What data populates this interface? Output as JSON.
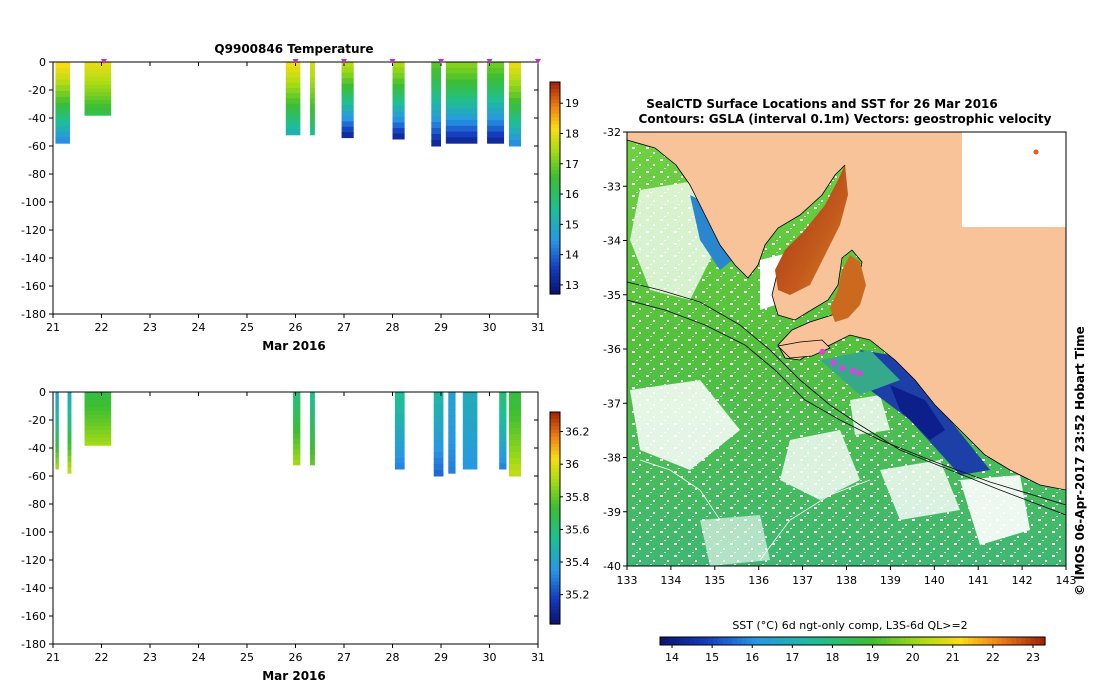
{
  "chart_data": [
    {
      "type": "heatmap",
      "title": "Q9900846  Temperature",
      "xlabel": "Mar 2016",
      "x_ticks": [
        "21",
        "22",
        "23",
        "24",
        "25",
        "26",
        "27",
        "28",
        "29",
        "30",
        "31"
      ],
      "y_ticks": [
        "0",
        "-20",
        "-40",
        "-60",
        "-80",
        "-100",
        "-120",
        "-140",
        "-160",
        "-180"
      ],
      "xlim": [
        21,
        31
      ],
      "ylim": [
        -180,
        0
      ],
      "colorbar": {
        "ticks": [
          "19",
          "18",
          "17",
          "16",
          "15",
          "14",
          "13"
        ],
        "tick_values": [
          19,
          18,
          17,
          16,
          15,
          14,
          13
        ],
        "range": [
          12.7,
          19.7
        ]
      },
      "profiles": [
        {
          "x0": 21.05,
          "x1": 21.35,
          "depth": 58,
          "surface": 18.2,
          "bottom": 14.2
        },
        {
          "x0": 21.65,
          "x1": 22.2,
          "depth": 38,
          "surface": 18.0,
          "bottom": 16.2
        },
        {
          "x0": 25.8,
          "x1": 26.1,
          "depth": 52,
          "surface": 18.1,
          "bottom": 15.0
        },
        {
          "x0": 26.3,
          "x1": 26.4,
          "depth": 52,
          "surface": 17.8,
          "bottom": 15.5
        },
        {
          "x0": 26.95,
          "x1": 27.2,
          "depth": 54,
          "surface": 17.6,
          "bottom": 13.0
        },
        {
          "x0": 28.0,
          "x1": 28.25,
          "depth": 55,
          "surface": 17.5,
          "bottom": 13.0
        },
        {
          "x0": 28.8,
          "x1": 29.0,
          "depth": 60,
          "surface": 16.8,
          "bottom": 13.0
        },
        {
          "x0": 29.1,
          "x1": 29.75,
          "depth": 58,
          "surface": 17.2,
          "bottom": 13.0
        },
        {
          "x0": 29.95,
          "x1": 30.3,
          "depth": 58,
          "surface": 17.0,
          "bottom": 13.0
        },
        {
          "x0": 30.4,
          "x1": 30.65,
          "depth": 60,
          "surface": 18.0,
          "bottom": 14.2
        }
      ],
      "markers": [
        22.05,
        26.0,
        27.0,
        28.0,
        29.0,
        30.0,
        31.0
      ]
    },
    {
      "type": "heatmap",
      "title": "",
      "xlabel": "Mar 2016",
      "x_ticks": [
        "21",
        "22",
        "23",
        "24",
        "25",
        "26",
        "27",
        "28",
        "29",
        "30",
        "31"
      ],
      "y_ticks": [
        "0",
        "-20",
        "-40",
        "-60",
        "-80",
        "-100",
        "-120",
        "-140",
        "-160",
        "-180"
      ],
      "xlim": [
        21,
        31
      ],
      "ylim": [
        -180,
        0
      ],
      "colorbar": {
        "ticks": [
          "36.2",
          "36",
          "35.8",
          "35.6",
          "35.4",
          "35.2"
        ],
        "tick_values": [
          36.2,
          36.0,
          35.8,
          35.6,
          35.4,
          35.2
        ],
        "range": [
          35.02,
          36.32
        ]
      },
      "profiles": [
        {
          "x0": 21.05,
          "x1": 21.12,
          "depth": 55,
          "surface": 35.4,
          "bottom": 35.9
        },
        {
          "x0": 21.3,
          "x1": 21.38,
          "depth": 58,
          "surface": 35.45,
          "bottom": 35.95
        },
        {
          "x0": 21.65,
          "x1": 22.2,
          "depth": 38,
          "surface": 35.7,
          "bottom": 35.9
        },
        {
          "x0": 25.95,
          "x1": 26.1,
          "depth": 52,
          "surface": 35.6,
          "bottom": 35.9
        },
        {
          "x0": 26.3,
          "x1": 26.4,
          "depth": 52,
          "surface": 35.55,
          "bottom": 35.8
        },
        {
          "x0": 28.05,
          "x1": 28.25,
          "depth": 55,
          "surface": 35.55,
          "bottom": 35.3
        },
        {
          "x0": 28.85,
          "x1": 29.05,
          "depth": 60,
          "surface": 35.5,
          "bottom": 35.25
        },
        {
          "x0": 29.15,
          "x1": 29.3,
          "depth": 58,
          "surface": 35.4,
          "bottom": 35.3
        },
        {
          "x0": 29.45,
          "x1": 29.75,
          "depth": 55,
          "surface": 35.45,
          "bottom": 35.35
        },
        {
          "x0": 30.2,
          "x1": 30.35,
          "depth": 55,
          "surface": 35.6,
          "bottom": 35.3
        },
        {
          "x0": 30.4,
          "x1": 30.65,
          "depth": 60,
          "surface": 35.7,
          "bottom": 35.95
        }
      ]
    },
    {
      "type": "heatmap",
      "title": "SealCTD Surface Locations and SST for 26 Mar 2016",
      "subtitle": "Contours: GSLA (interval 0.1m) Vectors: geostrophic velocity",
      "x_ticks": [
        "133",
        "134",
        "135",
        "136",
        "137",
        "138",
        "139",
        "140",
        "141",
        "142",
        "143"
      ],
      "y_ticks": [
        "-32",
        "-33",
        "-34",
        "-35",
        "-36",
        "-37",
        "-38",
        "-39",
        "-40"
      ],
      "xlim": [
        133,
        143
      ],
      "ylim": [
        -40,
        -32
      ],
      "side_label": "© IMOS 06-Apr-2017 23:52 Hobart Time",
      "colorbar": {
        "label": "SST (°C) 6d ngt-only comp, L3S-6d QL>=2",
        "ticks": [
          "14",
          "15",
          "16",
          "17",
          "18",
          "19",
          "20",
          "21",
          "22",
          "23"
        ],
        "range": [
          13.7,
          23.3
        ]
      },
      "land_color": "#f9c39a",
      "surface_locations": [
        [
          137.45,
          -36.05
        ],
        [
          137.7,
          -36.25
        ],
        [
          137.9,
          -36.35
        ],
        [
          138.15,
          -36.4
        ],
        [
          138.3,
          -36.45
        ]
      ]
    }
  ]
}
